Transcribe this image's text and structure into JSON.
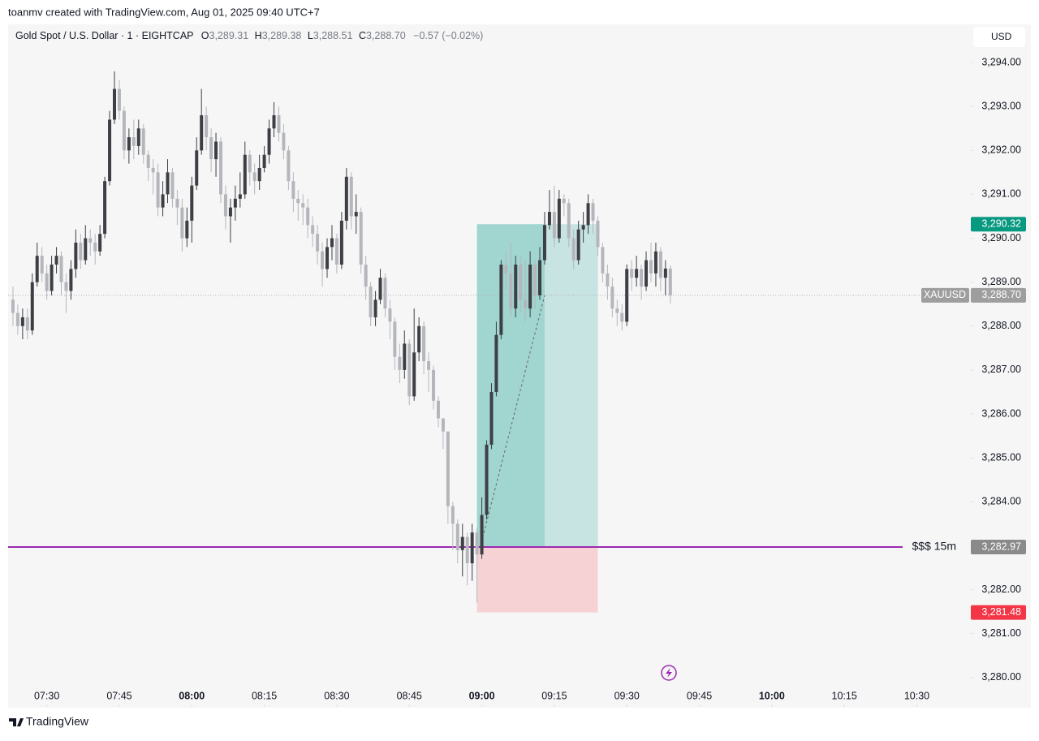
{
  "attribution": "toanmv created with TradingView.com, Aug 01, 2025 09:40 UTC+7",
  "header": {
    "symbol": "Gold Spot / U.S. Dollar · 1 · EIGHTCAP",
    "o_key": "O",
    "o": "3,289.31",
    "h_key": "H",
    "h": "3,289.38",
    "l_key": "L",
    "l": "3,288.51",
    "c_key": "C",
    "c": "3,288.70",
    "change": "−0.57 (−0.02%)"
  },
  "currency": "USD",
  "footer": "TradingView",
  "chart_data": {
    "type": "candlestick",
    "x": [
      "07:23",
      "07:24",
      "07:25",
      "07:26",
      "07:27",
      "07:28",
      "07:29",
      "07:30",
      "07:31",
      "07:32",
      "07:33",
      "07:34",
      "07:35",
      "07:36",
      "07:37",
      "07:38",
      "07:39",
      "07:40",
      "07:41",
      "07:42",
      "07:43",
      "07:44",
      "07:45",
      "07:46",
      "07:47",
      "07:48",
      "07:49",
      "07:50",
      "07:51",
      "07:52",
      "07:53",
      "07:54",
      "07:55",
      "07:56",
      "07:57",
      "07:58",
      "07:59",
      "08:00",
      "08:01",
      "08:02",
      "08:03",
      "08:04",
      "08:05",
      "08:06",
      "08:07",
      "08:08",
      "08:09",
      "08:10",
      "08:11",
      "08:12",
      "08:13",
      "08:14",
      "08:15",
      "08:16",
      "08:17",
      "08:18",
      "08:19",
      "08:20",
      "08:21",
      "08:22",
      "08:23",
      "08:24",
      "08:25",
      "08:26",
      "08:27",
      "08:28",
      "08:29",
      "08:30",
      "08:31",
      "08:32",
      "08:33",
      "08:34",
      "08:35",
      "08:36",
      "08:37",
      "08:38",
      "08:39",
      "08:40",
      "08:41",
      "08:42",
      "08:43",
      "08:44",
      "08:45",
      "08:46",
      "08:47",
      "08:48",
      "08:49",
      "08:50",
      "08:51",
      "08:52",
      "08:53",
      "08:54",
      "08:55",
      "08:56",
      "08:57",
      "08:58",
      "08:59",
      "09:00",
      "09:01",
      "09:02",
      "09:03",
      "09:04",
      "09:05",
      "09:06",
      "09:07",
      "09:08",
      "09:09",
      "09:10",
      "09:11",
      "09:12",
      "09:13",
      "09:14",
      "09:15",
      "09:16",
      "09:17",
      "09:18",
      "09:19",
      "09:20",
      "09:21",
      "09:22",
      "09:23",
      "09:24",
      "09:25",
      "09:26",
      "09:27",
      "09:28",
      "09:29",
      "09:30",
      "09:31",
      "09:32",
      "09:33",
      "09:34",
      "09:35",
      "09:36",
      "09:37",
      "09:38",
      "09:39"
    ],
    "open": [
      3288.6,
      3288.3,
      3288.0,
      3288.2,
      3287.9,
      3289.0,
      3289.6,
      3289.2,
      3288.8,
      3289.4,
      3289.6,
      3289.0,
      3288.8,
      3289.3,
      3289.9,
      3289.5,
      3290.0,
      3289.9,
      3289.7,
      3290.1,
      3291.3,
      3292.7,
      3293.4,
      3292.9,
      3292.0,
      3292.3,
      3292.1,
      3292.5,
      3291.9,
      3291.6,
      3291.5,
      3290.7,
      3291.0,
      3291.5,
      3290.9,
      3290.7,
      3290.0,
      3290.4,
      3291.2,
      3292.0,
      3292.8,
      3292.3,
      3291.8,
      3292.2,
      3291.0,
      3290.5,
      3290.7,
      3290.9,
      3291.0,
      3291.9,
      3291.5,
      3291.3,
      3291.6,
      3291.9,
      3292.5,
      3292.8,
      3292.4,
      3292.0,
      3291.3,
      3290.9,
      3290.8,
      3290.7,
      3290.3,
      3290.1,
      3289.7,
      3289.3,
      3289.8,
      3290.0,
      3289.4,
      3290.4,
      3291.4,
      3290.5,
      3290.6,
      3289.4,
      3288.9,
      3288.2,
      3288.6,
      3289.1,
      3288.4,
      3288.1,
      3287.3,
      3287.0,
      3287.6,
      3286.4,
      3287.4,
      3288.0,
      3287.2,
      3287.0,
      3286.3,
      3285.9,
      3285.6,
      3283.9,
      3283.5,
      3282.9,
      3283.2,
      3282.6,
      3283.3,
      3282.8,
      3283.7,
      3285.3,
      3286.5,
      3287.8,
      3289.4,
      3289.2,
      3288.4,
      3289.4,
      3288.6,
      3288.4,
      3289.4,
      3288.7,
      3289.5,
      3290.3,
      3290.6,
      3290.0,
      3290.9,
      3290.8,
      3290.0,
      3289.5,
      3290.2,
      3290.3,
      3290.8,
      3290.4,
      3289.8,
      3289.2,
      3288.9,
      3288.4,
      3288.3,
      3288.1,
      3289.3,
      3289.1,
      3289.3,
      3288.9,
      3289.5,
      3289.2,
      3289.7,
      3289.1,
      3289.31
    ],
    "high": [
      3288.9,
      3288.5,
      3288.4,
      3288.4,
      3289.2,
      3289.9,
      3289.8,
      3289.4,
      3289.6,
      3289.8,
      3289.7,
      3289.2,
      3289.5,
      3290.2,
      3290.1,
      3290.3,
      3290.2,
      3290.1,
      3290.3,
      3291.4,
      3292.9,
      3293.8,
      3293.6,
      3293.0,
      3292.5,
      3292.7,
      3292.7,
      3292.6,
      3292.0,
      3291.8,
      3291.7,
      3291.3,
      3291.8,
      3291.6,
      3291.1,
      3290.9,
      3290.7,
      3291.4,
      3292.3,
      3293.4,
      3293.0,
      3292.5,
      3292.4,
      3292.3,
      3291.2,
      3290.9,
      3291.2,
      3291.5,
      3292.2,
      3292.0,
      3291.7,
      3291.9,
      3292.1,
      3292.7,
      3293.1,
      3293.0,
      3292.6,
      3292.1,
      3291.5,
      3291.1,
      3291.0,
      3290.9,
      3290.5,
      3290.3,
      3289.9,
      3290.0,
      3290.3,
      3290.1,
      3290.6,
      3291.6,
      3291.5,
      3291.0,
      3290.7,
      3289.6,
      3289.0,
      3288.8,
      3289.3,
      3289.2,
      3288.6,
      3288.2,
      3287.6,
      3287.9,
      3287.7,
      3288.4,
      3288.2,
      3288.1,
      3287.4,
      3287.1,
      3286.4,
      3285.9,
      3285.6,
      3284.0,
      3283.6,
      3283.5,
      3283.3,
      3283.5,
      3283.4,
      3284.1,
      3285.4,
      3286.7,
      3288.1,
      3289.5,
      3289.7,
      3289.9,
      3289.6,
      3289.6,
      3289.5,
      3289.7,
      3289.5,
      3289.8,
      3290.6,
      3291.1,
      3291.2,
      3291.1,
      3291.0,
      3290.9,
      3290.2,
      3290.4,
      3290.6,
      3291.0,
      3290.9,
      3290.5,
      3289.9,
      3289.4,
      3289.1,
      3288.6,
      3288.5,
      3289.4,
      3289.5,
      3289.6,
      3289.4,
      3289.7,
      3289.9,
      3289.9,
      3289.8,
      3289.5,
      3289.38
    ],
    "low": [
      3288.0,
      3287.8,
      3287.7,
      3287.7,
      3287.8,
      3288.9,
      3289.0,
      3288.6,
      3288.7,
      3289.2,
      3288.7,
      3288.3,
      3288.6,
      3289.1,
      3289.3,
      3289.4,
      3289.6,
      3289.4,
      3289.6,
      3290.0,
      3291.2,
      3292.6,
      3292.7,
      3291.8,
      3291.7,
      3291.8,
      3291.9,
      3291.7,
      3291.3,
      3291.0,
      3290.5,
      3290.5,
      3290.8,
      3290.7,
      3290.3,
      3289.7,
      3289.8,
      3289.9,
      3291.1,
      3291.9,
      3292.0,
      3291.5,
      3291.4,
      3290.8,
      3290.2,
      3289.9,
      3290.4,
      3290.7,
      3290.9,
      3291.2,
      3291.0,
      3291.1,
      3291.5,
      3291.7,
      3292.3,
      3292.2,
      3291.8,
      3291.1,
      3290.6,
      3290.4,
      3290.3,
      3290.0,
      3289.8,
      3289.4,
      3288.9,
      3289.1,
      3289.5,
      3289.2,
      3289.3,
      3290.2,
      3290.2,
      3290.1,
      3289.2,
      3288.6,
      3288.0,
      3288.0,
      3288.5,
      3288.2,
      3287.7,
      3287.0,
      3286.7,
      3286.8,
      3286.2,
      3286.3,
      3287.2,
      3286.9,
      3286.5,
      3286.1,
      3285.7,
      3285.2,
      3283.5,
      3282.9,
      3282.6,
      3282.3,
      3282.1,
      3282.2,
      3281.7,
      3282.7,
      3283.6,
      3285.2,
      3286.4,
      3287.7,
      3288.8,
      3288.2,
      3288.2,
      3288.3,
      3288.1,
      3288.2,
      3288.4,
      3288.6,
      3289.4,
      3290.2,
      3289.8,
      3289.9,
      3290.5,
      3289.8,
      3289.3,
      3289.4,
      3289.9,
      3290.1,
      3290.1,
      3289.6,
      3289.0,
      3288.6,
      3288.2,
      3288.0,
      3287.9,
      3288.0,
      3288.8,
      3288.9,
      3288.6,
      3288.8,
      3289.0,
      3288.9,
      3288.8,
      3288.7,
      3288.51
    ],
    "close": [
      3288.3,
      3288.0,
      3288.2,
      3287.9,
      3289.0,
      3289.6,
      3289.2,
      3288.8,
      3289.4,
      3289.6,
      3289.0,
      3288.8,
      3289.3,
      3289.9,
      3289.5,
      3290.0,
      3289.9,
      3289.7,
      3290.1,
      3291.3,
      3292.7,
      3293.4,
      3292.9,
      3292.0,
      3292.3,
      3292.1,
      3292.5,
      3291.9,
      3291.6,
      3291.5,
      3290.7,
      3291.0,
      3291.5,
      3290.9,
      3290.7,
      3290.0,
      3290.4,
      3291.2,
      3292.0,
      3292.8,
      3292.3,
      3291.8,
      3292.2,
      3291.0,
      3290.5,
      3290.7,
      3290.9,
      3291.0,
      3291.9,
      3291.5,
      3291.3,
      3291.6,
      3291.9,
      3292.5,
      3292.8,
      3292.4,
      3292.0,
      3291.3,
      3290.9,
      3290.8,
      3290.7,
      3290.3,
      3290.1,
      3289.7,
      3289.3,
      3289.8,
      3290.0,
      3289.4,
      3290.4,
      3291.4,
      3290.5,
      3290.6,
      3289.4,
      3288.9,
      3288.2,
      3288.6,
      3289.1,
      3288.4,
      3288.1,
      3287.3,
      3287.0,
      3287.6,
      3286.4,
      3287.4,
      3288.0,
      3287.2,
      3287.0,
      3286.3,
      3285.9,
      3285.6,
      3283.9,
      3283.5,
      3282.9,
      3283.2,
      3282.6,
      3283.3,
      3282.8,
      3283.7,
      3285.3,
      3286.5,
      3287.8,
      3289.4,
      3289.2,
      3288.4,
      3289.4,
      3288.6,
      3288.4,
      3289.4,
      3288.7,
      3289.5,
      3290.3,
      3290.6,
      3290.0,
      3290.9,
      3290.8,
      3290.0,
      3289.5,
      3290.2,
      3290.3,
      3290.8,
      3290.4,
      3289.8,
      3289.2,
      3288.9,
      3288.4,
      3288.3,
      3288.1,
      3289.3,
      3289.1,
      3289.3,
      3288.9,
      3289.5,
      3289.2,
      3289.7,
      3289.1,
      3289.31,
      3288.7
    ],
    "up_color": "#3d3f45",
    "down_color": "#b4b6bb",
    "xlim": [
      "07:22",
      "10:41"
    ],
    "xticks": [
      "07:30",
      "07:45",
      "08:00",
      "08:15",
      "08:30",
      "08:45",
      "09:00",
      "09:15",
      "09:30",
      "09:45",
      "10:00",
      "10:15",
      "10:30"
    ],
    "ylim": [
      3279.81,
      3294.87
    ],
    "yticks": [
      {
        "value": 3280,
        "label": "3,280.00"
      },
      {
        "value": 3281,
        "label": "3,281.00"
      },
      {
        "value": 3282,
        "label": "3,282.00"
      },
      {
        "value": 3283,
        "label": "3,283.00"
      },
      {
        "value": 3284,
        "label": "3,284.00"
      },
      {
        "value": 3285,
        "label": "3,285.00"
      },
      {
        "value": 3286,
        "label": "3,286.00"
      },
      {
        "value": 3287,
        "label": "3,287.00"
      },
      {
        "value": 3288,
        "label": "3,288.00"
      },
      {
        "value": 3289,
        "label": "3,289.00"
      },
      {
        "value": 3290,
        "label": "3,290.00"
      },
      {
        "value": 3291,
        "label": "3,291.00"
      },
      {
        "value": 3292,
        "label": "3,292.00"
      },
      {
        "value": 3293,
        "label": "3,293.00"
      },
      {
        "value": 3294,
        "label": "3,294.00"
      }
    ],
    "levels": [
      {
        "value": 3290.32,
        "label": "3,290.32",
        "color": "#089981"
      },
      {
        "name": "XAUUSD",
        "value": 3288.7,
        "label": "3,288.70",
        "color": "#9e9e9e",
        "line_color": "#b0b0b0",
        "line": "dotted"
      },
      {
        "name": "$$$ 15m",
        "value": 3282.97,
        "label": "3,282.97",
        "color": "#8a8a8a",
        "line_color": "#9c27b0",
        "line": "solid"
      },
      {
        "value": 3281.48,
        "label": "3,281.48",
        "color": "#f23645"
      }
    ],
    "position": {
      "entry": 3282.97,
      "target": 3290.32,
      "stop": 3281.48,
      "start": "08:59",
      "filled": "09:13",
      "end": "09:24",
      "profit_color": "#26a69a",
      "loss_color": "#f7525f"
    }
  }
}
